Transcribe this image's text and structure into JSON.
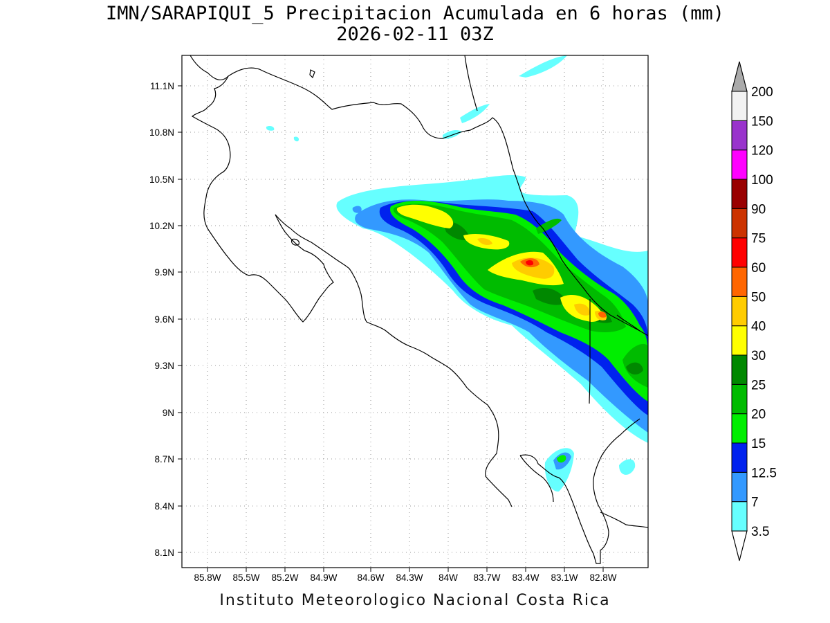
{
  "title": {
    "line1": "IMN/SARAPIQUI_5 Precipitacion Acumulada en 6 horas (mm)",
    "line2": "2026-02-11 03Z"
  },
  "footer": "Instituto Meteorologico Nacional Costa Rica",
  "map": {
    "lon_range": [
      -86.0,
      -82.6
    ],
    "lat_range": [
      8.0,
      11.3
    ],
    "x_ticks": [
      "85.8W",
      "85.5W",
      "85.2W",
      "84.9W",
      "84.6W",
      "84.3W",
      "84W",
      "83.7W",
      "83.4W",
      "83.1W",
      "82.8W"
    ],
    "y_ticks": [
      "11.1N",
      "10.8N",
      "10.5N",
      "10.2N",
      "9.9N",
      "9.6N",
      "9.3N",
      "9N",
      "8.7N",
      "8.4N",
      "8.1N"
    ]
  },
  "colorbar": {
    "labels": [
      "3.5",
      "7",
      "12.5",
      "15",
      "20",
      "25",
      "30",
      "40",
      "50",
      "60",
      "75",
      "90",
      "100",
      "120",
      "150",
      "200"
    ],
    "colors": [
      "#66ffff",
      "#3399ff",
      "#0022ee",
      "#00ee00",
      "#00bb00",
      "#008800",
      "#ffff00",
      "#ffcc00",
      "#ff6600",
      "#ff0000",
      "#cc3300",
      "#990000",
      "#ff00ff",
      "#9933cc",
      "#f2f2f2",
      "#aaaaaa"
    ]
  }
}
